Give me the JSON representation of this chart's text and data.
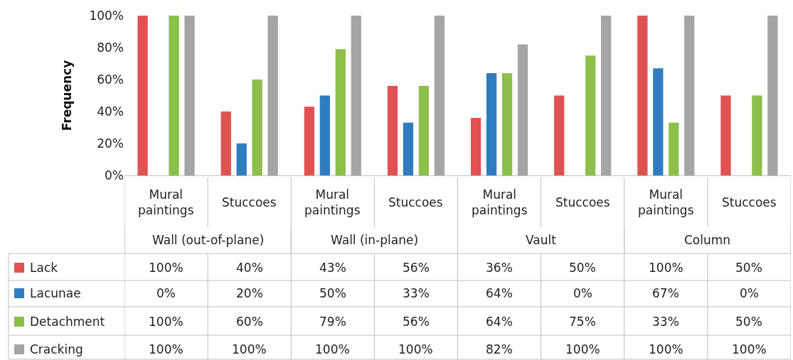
{
  "chart_data": {
    "type": "bar",
    "ylabel": "Frequency",
    "categories": [
      "Mural paintings",
      "Stuccoes",
      "Mural paintings",
      "Stuccoes",
      "Mural paintings",
      "Stuccoes",
      "Mural paintings",
      "Stuccoes"
    ],
    "annotations": [
      "Wall (out-of-plane)",
      "Wall (in-plane)",
      "Vault",
      "Column"
    ],
    "series": [
      {
        "name": "Lack",
        "color": "#e05252",
        "values": [
          100,
          40,
          43,
          56,
          36,
          50,
          100,
          50
        ],
        "value_labels": [
          "100%",
          "40%",
          "43%",
          "56%",
          "36%",
          "50%",
          "100%",
          "50%"
        ]
      },
      {
        "name": "Lacunae",
        "color": "#2f7cc0",
        "values": [
          0,
          20,
          50,
          33,
          64,
          0,
          67,
          0
        ],
        "value_labels": [
          "0%",
          "20%",
          "50%",
          "33%",
          "64%",
          "0%",
          "67%",
          "0%"
        ]
      },
      {
        "name": "Detachment",
        "color": "#8dbf4b",
        "values": [
          100,
          60,
          79,
          56,
          64,
          75,
          33,
          50
        ],
        "value_labels": [
          "100%",
          "60%",
          "79%",
          "56%",
          "64%",
          "75%",
          "33%",
          "50%"
        ]
      },
      {
        "name": "Cracking",
        "color": "#a5a5a5",
        "values": [
          100,
          100,
          100,
          100,
          82,
          100,
          100,
          100
        ],
        "value_labels": [
          "100%",
          "100%",
          "100%",
          "100%",
          "82%",
          "100%",
          "100%",
          "100%"
        ]
      }
    ],
    "ylim": [
      0,
      100
    ],
    "yticks": [
      {
        "value": 0,
        "label": "0%"
      },
      {
        "value": 20,
        "label": "20%"
      },
      {
        "value": 40,
        "label": "40%"
      },
      {
        "value": 60,
        "label": "60%"
      },
      {
        "value": 80,
        "label": "80%"
      },
      {
        "value": 100,
        "label": "100%"
      }
    ],
    "legend": "bottom left"
  }
}
